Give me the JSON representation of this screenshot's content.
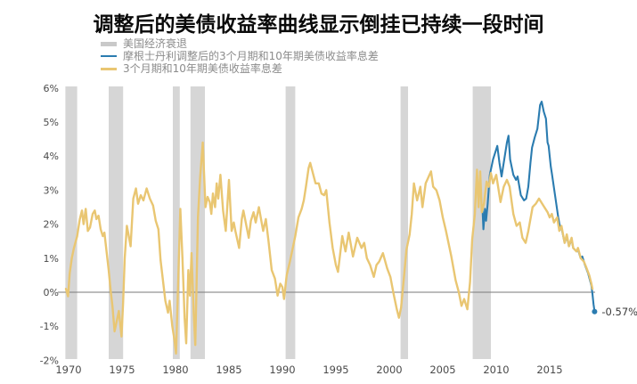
{
  "title": "调整后的美债收益率曲线显示倒挂已持续一段时间",
  "legend": [
    {
      "label": "美国经济衰退",
      "type": "recession-band"
    },
    {
      "label": "摩根士丹利调整后的3个月期和10年期美债收益率息差",
      "type": "line",
      "color": "#2b7cb0"
    },
    {
      "label": "3个月期和10年期美债收益率息差",
      "type": "line",
      "color": "#e9c672"
    }
  ],
  "chart_data": {
    "type": "line",
    "title": "调整后的美债收益率曲线显示倒挂已持续一段时间",
    "xlabel": "",
    "ylabel": "",
    "x_axis": {
      "ticks": [
        1970,
        1975,
        1980,
        1985,
        1990,
        1995,
        2000,
        2005,
        2010,
        2015
      ],
      "range": [
        1969.5,
        2019.6
      ]
    },
    "y_axis": {
      "tick_values": [
        6,
        5,
        4,
        3,
        2,
        1,
        0,
        -1,
        -2
      ],
      "tick_labels": [
        "6%",
        "5%",
        "4%",
        "3%",
        "2%",
        "1%",
        "0%",
        "-1%",
        "-2%"
      ],
      "range": [
        -2,
        6
      ],
      "grid": false
    },
    "legend_position": "top-left",
    "recession_bands": [
      [
        1969.7,
        1970.8
      ],
      [
        1973.75,
        1975.1
      ],
      [
        1979.75,
        1980.4
      ],
      [
        1981.4,
        1982.75
      ],
      [
        1990.3,
        1991.2
      ],
      [
        2001.05,
        2001.75
      ],
      [
        2007.8,
        2009.5
      ]
    ],
    "series": [
      {
        "name": "摩根士丹利调整后的3个月期和10年期美债收益率息差",
        "color": "#2b7cb0",
        "points": [
          [
            2008.7,
            2.55
          ],
          [
            2008.8,
            1.85
          ],
          [
            2008.95,
            2.45
          ],
          [
            2009.05,
            2.1
          ],
          [
            2009.2,
            2.6
          ],
          [
            2009.4,
            3.45
          ],
          [
            2009.7,
            3.9
          ],
          [
            2010.0,
            4.2
          ],
          [
            2010.1,
            4.3
          ],
          [
            2010.3,
            3.8
          ],
          [
            2010.5,
            3.4
          ],
          [
            2010.8,
            4.0
          ],
          [
            2011.0,
            4.4
          ],
          [
            2011.15,
            4.6
          ],
          [
            2011.3,
            3.9
          ],
          [
            2011.6,
            3.45
          ],
          [
            2011.85,
            3.3
          ],
          [
            2012.0,
            3.4
          ],
          [
            2012.3,
            2.85
          ],
          [
            2012.6,
            2.7
          ],
          [
            2012.8,
            2.75
          ],
          [
            2013.0,
            3.1
          ],
          [
            2013.2,
            3.8
          ],
          [
            2013.35,
            4.25
          ],
          [
            2013.6,
            4.55
          ],
          [
            2013.85,
            4.8
          ],
          [
            2014.1,
            5.5
          ],
          [
            2014.25,
            5.6
          ],
          [
            2014.45,
            5.3
          ],
          [
            2014.65,
            5.1
          ],
          [
            2014.8,
            4.4
          ],
          [
            2014.9,
            4.3
          ],
          [
            2015.1,
            3.7
          ],
          [
            2015.2,
            3.5
          ],
          [
            2015.5,
            2.85
          ],
          [
            2015.8,
            2.2
          ],
          [
            2016.0,
            1.85
          ],
          [
            2016.1,
            1.9
          ],
          [
            2016.4,
            1.45
          ],
          [
            2016.6,
            1.65
          ],
          [
            2016.8,
            1.35
          ],
          [
            2017.05,
            1.55
          ],
          [
            2017.2,
            1.3
          ],
          [
            2017.5,
            1.2
          ],
          [
            2017.65,
            1.25
          ],
          [
            2017.9,
            1.0
          ],
          [
            2018.05,
            1.05
          ],
          [
            2018.3,
            0.8
          ],
          [
            2018.6,
            0.55
          ],
          [
            2018.9,
            0.2
          ],
          [
            2019.0,
            -0.05
          ],
          [
            2019.1,
            -0.35
          ],
          [
            2019.2,
            -0.57
          ]
        ]
      },
      {
        "name": "3个月期和10年期美债收益率息差",
        "color": "#e9c672",
        "points": [
          [
            1969.75,
            0.1
          ],
          [
            1969.95,
            -0.12
          ],
          [
            1970.1,
            0.55
          ],
          [
            1970.3,
            1.0
          ],
          [
            1970.5,
            1.3
          ],
          [
            1970.8,
            1.65
          ],
          [
            1971.05,
            2.15
          ],
          [
            1971.25,
            2.4
          ],
          [
            1971.4,
            2.0
          ],
          [
            1971.6,
            2.45
          ],
          [
            1971.8,
            1.8
          ],
          [
            1972.0,
            1.9
          ],
          [
            1972.25,
            2.3
          ],
          [
            1972.45,
            2.4
          ],
          [
            1972.6,
            2.15
          ],
          [
            1972.8,
            2.25
          ],
          [
            1973.0,
            1.85
          ],
          [
            1973.2,
            1.65
          ],
          [
            1973.35,
            1.75
          ],
          [
            1973.55,
            1.2
          ],
          [
            1973.75,
            0.65
          ],
          [
            1973.95,
            0.0
          ],
          [
            1974.1,
            -0.4
          ],
          [
            1974.3,
            -1.15
          ],
          [
            1974.5,
            -0.85
          ],
          [
            1974.7,
            -0.55
          ],
          [
            1974.95,
            -1.3
          ],
          [
            1975.1,
            -0.3
          ],
          [
            1975.25,
            1.0
          ],
          [
            1975.45,
            1.95
          ],
          [
            1975.6,
            1.7
          ],
          [
            1975.8,
            1.35
          ],
          [
            1976.05,
            2.75
          ],
          [
            1976.3,
            3.05
          ],
          [
            1976.5,
            2.6
          ],
          [
            1976.75,
            2.85
          ],
          [
            1977.0,
            2.7
          ],
          [
            1977.3,
            3.05
          ],
          [
            1977.6,
            2.75
          ],
          [
            1977.9,
            2.55
          ],
          [
            1978.15,
            2.1
          ],
          [
            1978.4,
            1.85
          ],
          [
            1978.6,
            0.95
          ],
          [
            1978.9,
            0.15
          ],
          [
            1979.05,
            -0.25
          ],
          [
            1979.3,
            -0.6
          ],
          [
            1979.45,
            -0.25
          ],
          [
            1979.7,
            -1.0
          ],
          [
            1979.9,
            -1.4
          ],
          [
            1980.05,
            -1.8
          ],
          [
            1980.25,
            0.3
          ],
          [
            1980.45,
            2.45
          ],
          [
            1980.65,
            1.0
          ],
          [
            1980.85,
            -0.75
          ],
          [
            1981.0,
            -1.5
          ],
          [
            1981.2,
            0.65
          ],
          [
            1981.35,
            -0.1
          ],
          [
            1981.5,
            1.15
          ],
          [
            1981.7,
            -0.6
          ],
          [
            1981.85,
            -1.55
          ],
          [
            1982.1,
            2.2
          ],
          [
            1982.3,
            3.35
          ],
          [
            1982.55,
            4.4
          ],
          [
            1982.8,
            2.5
          ],
          [
            1983.0,
            2.8
          ],
          [
            1983.2,
            2.65
          ],
          [
            1983.35,
            2.3
          ],
          [
            1983.5,
            2.9
          ],
          [
            1983.7,
            2.5
          ],
          [
            1983.85,
            3.2
          ],
          [
            1984.0,
            2.75
          ],
          [
            1984.2,
            3.45
          ],
          [
            1984.45,
            2.4
          ],
          [
            1984.7,
            1.8
          ],
          [
            1985.0,
            3.3
          ],
          [
            1985.25,
            1.8
          ],
          [
            1985.45,
            2.05
          ],
          [
            1985.6,
            1.8
          ],
          [
            1985.95,
            1.3
          ],
          [
            1986.2,
            2.15
          ],
          [
            1986.35,
            2.4
          ],
          [
            1986.6,
            2.0
          ],
          [
            1986.85,
            1.6
          ],
          [
            1987.05,
            2.1
          ],
          [
            1987.3,
            2.35
          ],
          [
            1987.5,
            2.05
          ],
          [
            1987.8,
            2.5
          ],
          [
            1988.0,
            2.15
          ],
          [
            1988.2,
            1.8
          ],
          [
            1988.45,
            2.15
          ],
          [
            1988.7,
            1.5
          ],
          [
            1989.0,
            0.65
          ],
          [
            1989.3,
            0.4
          ],
          [
            1989.55,
            -0.1
          ],
          [
            1989.8,
            0.25
          ],
          [
            1990.0,
            0.15
          ],
          [
            1990.15,
            -0.2
          ],
          [
            1990.4,
            0.5
          ],
          [
            1990.7,
            0.9
          ],
          [
            1990.9,
            1.2
          ],
          [
            1991.2,
            1.65
          ],
          [
            1991.5,
            2.2
          ],
          [
            1991.8,
            2.45
          ],
          [
            1992.0,
            2.7
          ],
          [
            1992.2,
            3.1
          ],
          [
            1992.45,
            3.65
          ],
          [
            1992.6,
            3.8
          ],
          [
            1992.85,
            3.5
          ],
          [
            1993.1,
            3.2
          ],
          [
            1993.4,
            3.2
          ],
          [
            1993.65,
            2.9
          ],
          [
            1993.9,
            2.85
          ],
          [
            1994.1,
            3.0
          ],
          [
            1994.4,
            2.05
          ],
          [
            1994.7,
            1.3
          ],
          [
            1995.0,
            0.8
          ],
          [
            1995.2,
            0.6
          ],
          [
            1995.6,
            1.65
          ],
          [
            1995.9,
            1.2
          ],
          [
            1996.2,
            1.75
          ],
          [
            1996.6,
            1.05
          ],
          [
            1997.0,
            1.6
          ],
          [
            1997.4,
            1.3
          ],
          [
            1997.65,
            1.45
          ],
          [
            1997.9,
            1.0
          ],
          [
            1998.2,
            0.8
          ],
          [
            1998.55,
            0.45
          ],
          [
            1998.8,
            0.8
          ],
          [
            1999.05,
            0.9
          ],
          [
            1999.4,
            1.15
          ],
          [
            1999.8,
            0.7
          ],
          [
            2000.1,
            0.45
          ],
          [
            2000.4,
            -0.05
          ],
          [
            2000.7,
            -0.5
          ],
          [
            2000.9,
            -0.75
          ],
          [
            2001.1,
            -0.45
          ],
          [
            2001.4,
            0.55
          ],
          [
            2001.6,
            1.25
          ],
          [
            2001.9,
            1.7
          ],
          [
            2002.1,
            2.3
          ],
          [
            2002.3,
            3.2
          ],
          [
            2002.6,
            2.7
          ],
          [
            2002.9,
            3.1
          ],
          [
            2003.1,
            2.5
          ],
          [
            2003.4,
            3.2
          ],
          [
            2003.9,
            3.55
          ],
          [
            2004.1,
            3.1
          ],
          [
            2004.4,
            3.0
          ],
          [
            2004.7,
            2.7
          ],
          [
            2005.0,
            2.2
          ],
          [
            2005.3,
            1.8
          ],
          [
            2005.8,
            1.05
          ],
          [
            2006.2,
            0.35
          ],
          [
            2006.5,
            0.0
          ],
          [
            2006.75,
            -0.4
          ],
          [
            2007.0,
            -0.2
          ],
          [
            2007.3,
            -0.5
          ],
          [
            2007.55,
            0.3
          ],
          [
            2007.75,
            1.55
          ],
          [
            2008.0,
            2.3
          ],
          [
            2008.2,
            3.6
          ],
          [
            2008.35,
            2.5
          ],
          [
            2008.5,
            3.55
          ],
          [
            2008.65,
            2.35
          ],
          [
            2008.85,
            2.6
          ],
          [
            2009.1,
            3.25
          ],
          [
            2009.3,
            3.1
          ],
          [
            2009.5,
            3.5
          ],
          [
            2009.7,
            3.2
          ],
          [
            2010.0,
            3.45
          ],
          [
            2010.4,
            2.65
          ],
          [
            2010.7,
            3.1
          ],
          [
            2011.0,
            3.3
          ],
          [
            2011.25,
            3.1
          ],
          [
            2011.6,
            2.3
          ],
          [
            2011.9,
            1.95
          ],
          [
            2012.2,
            2.05
          ],
          [
            2012.45,
            1.6
          ],
          [
            2012.75,
            1.45
          ],
          [
            2013.0,
            1.8
          ],
          [
            2013.4,
            2.5
          ],
          [
            2013.7,
            2.6
          ],
          [
            2014.0,
            2.75
          ],
          [
            2014.4,
            2.55
          ],
          [
            2014.8,
            2.35
          ],
          [
            2015.0,
            2.2
          ],
          [
            2015.2,
            2.3
          ],
          [
            2015.4,
            2.05
          ],
          [
            2015.7,
            2.2
          ],
          [
            2015.9,
            1.8
          ],
          [
            2016.1,
            1.95
          ],
          [
            2016.4,
            1.45
          ],
          [
            2016.6,
            1.7
          ],
          [
            2016.8,
            1.35
          ],
          [
            2017.05,
            1.6
          ],
          [
            2017.2,
            1.3
          ],
          [
            2017.5,
            1.2
          ],
          [
            2017.65,
            1.3
          ],
          [
            2017.9,
            1.0
          ],
          [
            2018.2,
            0.9
          ],
          [
            2018.4,
            0.75
          ],
          [
            2018.7,
            0.5
          ],
          [
            2018.9,
            0.25
          ],
          [
            2019.0,
            0.1
          ]
        ]
      }
    ],
    "annotation": {
      "text": "-0.57%",
      "x": 2019.2,
      "y": -0.57
    },
    "colors": {
      "recession": "#d6d6d6",
      "zero_line": "#7a7a7a",
      "axis_text": "#4a4a4a",
      "background": "#ffffff"
    }
  }
}
